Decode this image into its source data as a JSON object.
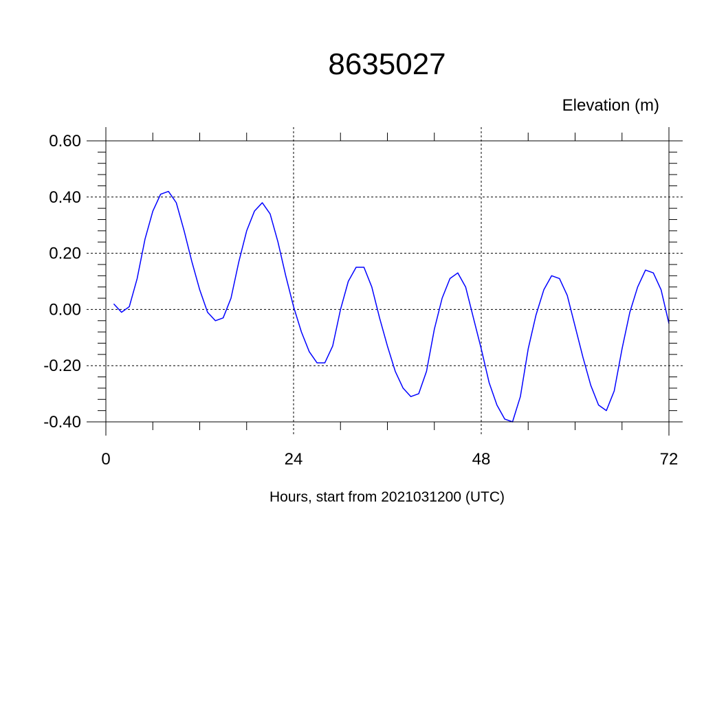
{
  "chart_data": {
    "type": "line",
    "title": "8635027",
    "subtitle": "Elevation (m)",
    "xlabel": "Hours, start from 2021031200 (UTC)",
    "ylabel": "",
    "xlim": [
      0,
      72
    ],
    "ylim": [
      -0.4,
      0.6
    ],
    "x_ticks": [
      0,
      24,
      48,
      72
    ],
    "x_tick_labels": [
      "0",
      "24",
      "48",
      "72"
    ],
    "y_ticks": [
      -0.4,
      -0.2,
      0.0,
      0.2,
      0.4,
      0.6
    ],
    "y_tick_labels": [
      "-0.40",
      "-0.20",
      "0.00",
      "0.20",
      "0.40",
      "0.60"
    ],
    "grid": true,
    "grid_style": "dashed",
    "line_color": "#0000ff",
    "series": [
      {
        "x": [
          1,
          2,
          3,
          4,
          5,
          6,
          7,
          8,
          9,
          10,
          11,
          12,
          13,
          14,
          15,
          16,
          17,
          18,
          19,
          20,
          21,
          22,
          23,
          24,
          25,
          26,
          27,
          28,
          29,
          30,
          31,
          32,
          33,
          34,
          35,
          36,
          37,
          38,
          39,
          40,
          41,
          42,
          43,
          44,
          45,
          46,
          47,
          48,
          49,
          50,
          51,
          52,
          53,
          54,
          55,
          56,
          57,
          58,
          59,
          60,
          61,
          62,
          63,
          64,
          65,
          66,
          67,
          68,
          69,
          70,
          71,
          72
        ],
        "y": [
          0.02,
          -0.01,
          0.01,
          0.11,
          0.25,
          0.35,
          0.41,
          0.42,
          0.38,
          0.28,
          0.17,
          0.07,
          -0.01,
          -0.04,
          -0.03,
          0.04,
          0.17,
          0.28,
          0.35,
          0.38,
          0.34,
          0.24,
          0.12,
          0.01,
          -0.08,
          -0.15,
          -0.19,
          -0.19,
          -0.13,
          0.0,
          0.1,
          0.15,
          0.15,
          0.08,
          -0.03,
          -0.13,
          -0.22,
          -0.28,
          -0.31,
          -0.3,
          -0.22,
          -0.07,
          0.04,
          0.11,
          0.13,
          0.08,
          -0.03,
          -0.14,
          -0.26,
          -0.34,
          -0.39,
          -0.4,
          -0.31,
          -0.14,
          -0.02,
          0.07,
          0.12,
          0.11,
          0.05,
          -0.06,
          -0.17,
          -0.27,
          -0.34,
          -0.36,
          -0.29,
          -0.14,
          -0.01,
          0.08,
          0.14,
          0.13,
          0.07,
          -0.05
        ]
      }
    ]
  }
}
